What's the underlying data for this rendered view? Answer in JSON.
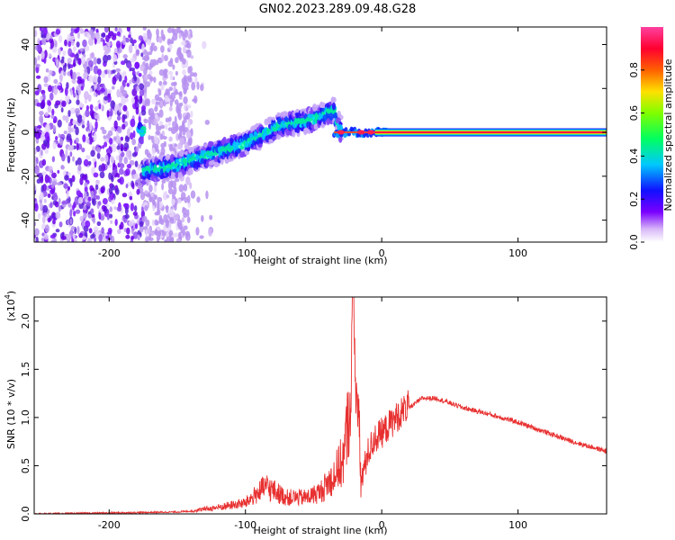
{
  "title": "GN02.2023.289.09.48.G28",
  "chart_data": [
    {
      "type": "heatmap",
      "xlabel": "Height of straight line (km)",
      "ylabel": "Frequency (Hz)",
      "xlim": [
        -255,
        165
      ],
      "ylim": [
        -50,
        48
      ],
      "xticks": [
        -200,
        -100,
        0,
        100
      ],
      "yticks": [
        -40,
        -20,
        0,
        20,
        40
      ],
      "colorbar": {
        "label": "Normalized spectral amplitude",
        "range": [
          0,
          1
        ],
        "ticks": [
          0.0,
          0.2,
          0.4,
          0.6,
          0.8
        ]
      },
      "noise_region": {
        "x": [
          -255,
          -140
        ],
        "y": [
          -50,
          48
        ]
      },
      "signal_ridge": [
        {
          "x": -175,
          "y": -18
        },
        {
          "x": -150,
          "y": -15
        },
        {
          "x": -125,
          "y": -10
        },
        {
          "x": -100,
          "y": -5
        },
        {
          "x": -75,
          "y": 3
        },
        {
          "x": -50,
          "y": 6
        },
        {
          "x": -35,
          "y": 10
        },
        {
          "x": -30,
          "y": 0
        },
        {
          "x": 0,
          "y": 0
        },
        {
          "x": 165,
          "y": 0
        }
      ]
    },
    {
      "type": "line",
      "xlabel": "Height of straight line (km)",
      "ylabel": "SNR (10 * v/v)",
      "exponent": "(x10",
      "exponent_power": "4",
      "exponent_close": ")",
      "xlim": [
        -255,
        165
      ],
      "ylim": [
        0,
        2.25
      ],
      "xticks": [
        -200,
        -100,
        0,
        100
      ],
      "yticks": [
        0.0,
        0.5,
        1.0,
        1.5,
        2.0
      ],
      "series": [
        {
          "color": "#e83030",
          "x": [
            -255,
            -200,
            -150,
            -138,
            -120,
            -100,
            -85,
            -70,
            -55,
            -45,
            -35,
            -28,
            -23,
            -21,
            -19,
            -15,
            -10,
            -5,
            0,
            10,
            20,
            25,
            30,
            40,
            60,
            80,
            100,
            120,
            140,
            165
          ],
          "values": [
            0.0,
            0.01,
            0.02,
            0.03,
            0.06,
            0.1,
            0.25,
            0.15,
            0.15,
            0.2,
            0.35,
            0.5,
            1.0,
            2.25,
            1.3,
            0.3,
            0.6,
            0.75,
            0.8,
            0.95,
            1.1,
            1.15,
            1.2,
            1.2,
            1.1,
            1.03,
            0.95,
            0.85,
            0.75,
            0.65
          ]
        }
      ]
    }
  ]
}
